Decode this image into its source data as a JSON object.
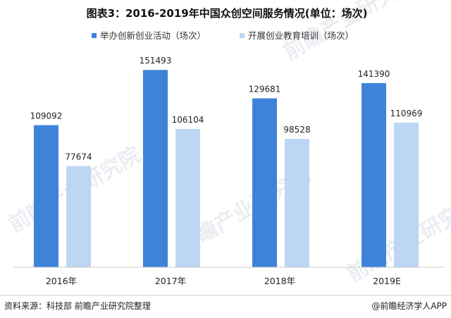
{
  "chart_data": {
    "type": "bar",
    "title": "图表3：2016-2019年中国众创空间服务情况(单位：场次)",
    "categories": [
      "2016年",
      "2017年",
      "2018年",
      "2019E"
    ],
    "series": [
      {
        "name": "举办创新创业活动（场次）",
        "values": [
          109092,
          151493,
          129681,
          141390
        ],
        "color": "#3f83d9"
      },
      {
        "name": "开展创业教育培训（场次）",
        "values": [
          77674,
          106104,
          98528,
          110969
        ],
        "color": "#bcd6f3"
      }
    ],
    "ylim": [
      0,
      170000
    ],
    "grid": false,
    "legend_position": "top-left"
  },
  "footer": {
    "source": "资料来源：科技部 前瞻产业研究院整理",
    "brand": "@前瞻经济学人APP"
  },
  "watermark": {
    "text": "前瞻产业研究院"
  }
}
